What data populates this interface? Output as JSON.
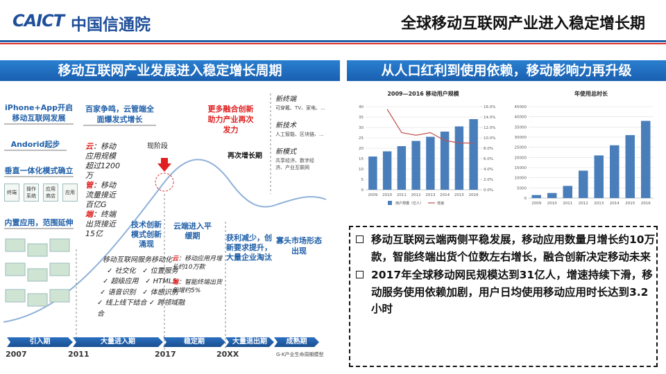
{
  "header": {
    "logo_mark": "CAICT",
    "logo_text": "中国信通院",
    "title": "全球移动互联网产业进入稳定增长期"
  },
  "left_panel": {
    "title": "移动互联网产业发展进入稳定增长周期",
    "milestones": [
      "iPhone+App开启移动互联网发展",
      "Andorid起步",
      "垂直一体化模式确立",
      "内置应用，范围延伸"
    ],
    "chain": [
      "终端",
      "操作系统",
      "应用商店",
      "应用"
    ],
    "burst": {
      "heading": "百家争鸣，云管端全面爆发式增长",
      "items": [
        {
          "key": "云",
          "text": "：移动应用规模超过1200万"
        },
        {
          "key": "管",
          "text": "：移动流量接近百亿G"
        },
        {
          "key": "端",
          "text": "：终端出货接近15亿"
        }
      ]
    },
    "current_stage": "现阶段",
    "innovation": "更多融合创新助力产业再次发力",
    "regrowth": "再次增长期",
    "outlook": [
      {
        "heading": "新终端",
        "text": "可穿戴、TV、家电、..."
      },
      {
        "heading": "新技术",
        "text": "人工智能、区块链、..."
      },
      {
        "heading": "新模式",
        "text": "共享经济、数字经济、产业互联网"
      }
    ],
    "tech_innovation": "技术创新模式创新涌现",
    "services": [
      "移动互联网服务移动化",
      "社交化",
      "位置服务",
      "超级应用",
      "HTML5",
      "语音识别",
      "体感识别",
      "线上线下结合",
      "跨领域融合"
    ],
    "plateau": {
      "heading": "云端进入平缓期",
      "items": [
        {
          "key": "云",
          "text": "：移动应用月增长约10万款"
        },
        {
          "key": "端",
          "text": "：智能终端出货年增约5%"
        }
      ]
    },
    "shakeout": "获利减少，创新要求提升，大量企业淘汰",
    "oligopoly": "寡头市场形态出现",
    "phases": [
      "引入期",
      "大量进入期",
      "稳定期",
      "大量退出期",
      "成熟期"
    ],
    "years": [
      "2007",
      "2011",
      "2017",
      "20XX"
    ],
    "model": "G-K产业生命周期模型"
  },
  "right_panel": {
    "title": "从人口红利到使用依赖，移动影响力再升级",
    "charts": [
      {
        "type": "bar",
        "title": "2009—2016 移动用户规模",
        "categories": [
          "2009",
          "2010",
          "2011",
          "2012",
          "2013",
          "2014",
          "2015",
          "2016"
        ],
        "series": [
          {
            "name": "用户规模（亿人）",
            "color": "#4a7ebb",
            "values": [
              16,
              18.5,
              21,
              23.5,
              25.5,
              28,
              30.5,
              34
            ]
          },
          {
            "name": "增速",
            "color": "#c0504d",
            "axis": "y2",
            "type": "line",
            "values": [
              null,
              15.5,
              11,
              10.5,
              11,
              9.5,
              9,
              9
            ]
          }
        ],
        "ylim": [
          0,
          40
        ],
        "yticks": [
          0,
          5,
          10,
          15,
          20,
          25,
          30,
          35,
          40
        ],
        "y2lim": [
          0,
          16
        ],
        "y2ticks": [
          {
            "value": 0,
            "label": "0.0%"
          },
          {
            "value": 2,
            "label": "2.0%"
          },
          {
            "value": 4,
            "label": "4.0%"
          },
          {
            "value": 6,
            "label": "6.0%"
          },
          {
            "value": 8,
            "label": "8.0%"
          },
          {
            "value": 10,
            "label": "10.0%"
          },
          {
            "value": 12,
            "label": "12.0%"
          },
          {
            "value": 14,
            "label": "14.0%"
          },
          {
            "value": 16,
            "label": "16.0%"
          }
        ],
        "grid": true,
        "legend": "bottom"
      },
      {
        "type": "bar",
        "title": "年使用总时长",
        "categories": [
          "2009",
          "2010",
          "2011",
          "2012",
          "2013",
          "2014",
          "2015",
          "2016"
        ],
        "series": [
          {
            "name": null,
            "color": "#4a7ebb",
            "values": [
              1500,
              2500,
              6000,
              13500,
              21000,
              26000,
              31000,
              38000
            ]
          }
        ],
        "ylim": [
          0,
          45000
        ],
        "yticks": [
          0,
          5000,
          10000,
          15000,
          20000,
          25000,
          30000,
          35000,
          40000,
          45000
        ],
        "grid": true
      }
    ],
    "bullets": [
      "移动互联网云端两侧平稳发展，移动应用数量月增长约10万款，智能终端出货个位数左右增长，融合创新决定移动未来",
      "2017年全球移动网民规模达到31亿人，增速持续下滑，移动服务使用依赖加剧，用户日均使用移动应用时长达到3.2小时"
    ]
  }
}
